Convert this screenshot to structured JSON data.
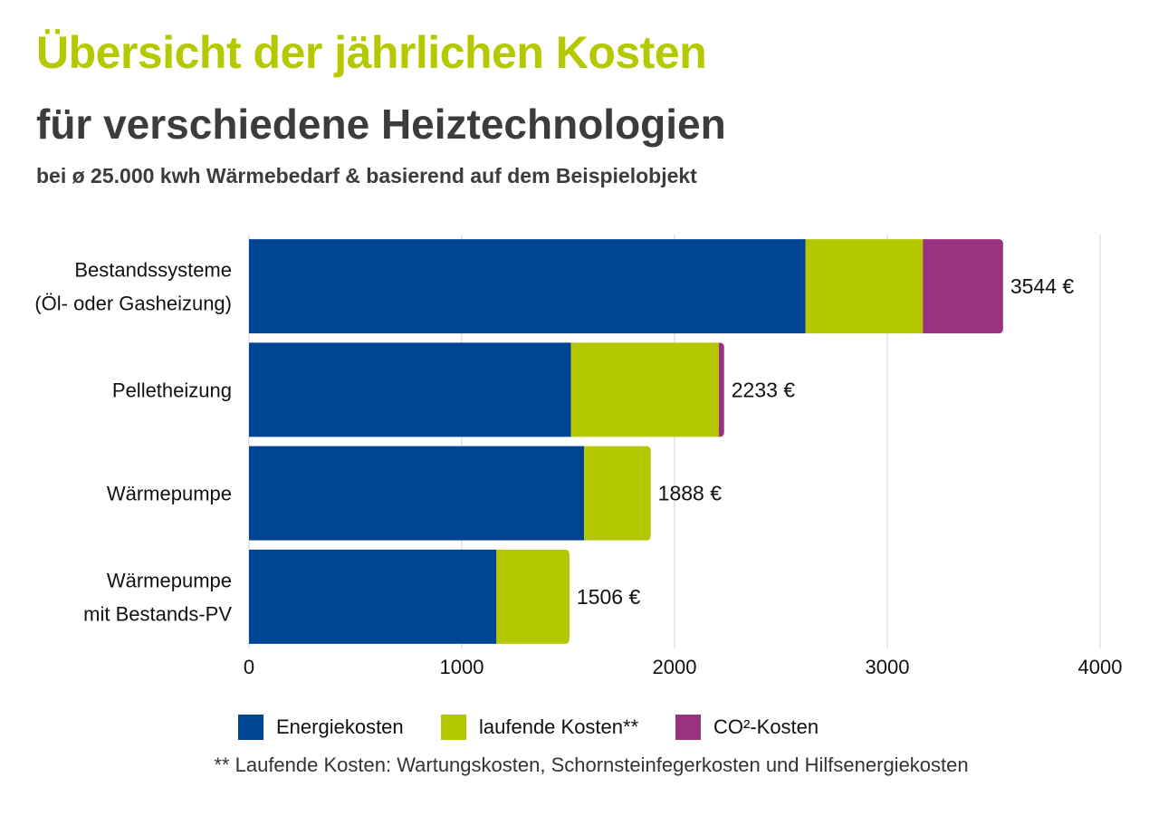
{
  "colors": {
    "title": "#b5c900",
    "energie": "#004494",
    "laufend": "#b3c800",
    "co2": "#993380",
    "grid": "#d3d3d3"
  },
  "header": {
    "title": "Übersicht der jährlichen Kosten",
    "subtitle": "für verschiedene Heiztechnologien",
    "subtitle2": "bei ø 25.000 kwh Wärmebedarf & basierend auf dem Beispielobjekt"
  },
  "footnote": "** Laufende Kosten: Wartungskosten, Schornsteinfegerkosten und Hilfsenergiekosten",
  "chart_data": {
    "type": "bar",
    "orientation": "horizontal",
    "stacked": true,
    "categories": [
      [
        "Bestandssysteme",
        "(Öl- oder Gasheizung)"
      ],
      [
        "Pelletheizung"
      ],
      [
        "Wärmepumpe"
      ],
      [
        "Wärmepumpe",
        "mit Bestands-PV"
      ]
    ],
    "series": [
      {
        "name": "Energiekosten",
        "values": [
          2615,
          1513,
          1575,
          1163
        ]
      },
      {
        "name": "laufende Kosten**",
        "values": [
          552,
          695,
          313,
          343
        ]
      },
      {
        "name": "CO²-Kosten",
        "values": [
          377,
          25,
          0,
          0
        ]
      }
    ],
    "totals": [
      "3544 €",
      "2233 €",
      "1888 €",
      "1506 €"
    ],
    "xlim": [
      0,
      4000
    ],
    "xticks": [
      0,
      1000,
      2000,
      3000,
      4000
    ],
    "xlabel": "",
    "ylabel": "",
    "grid": true,
    "legend": "bottom"
  }
}
